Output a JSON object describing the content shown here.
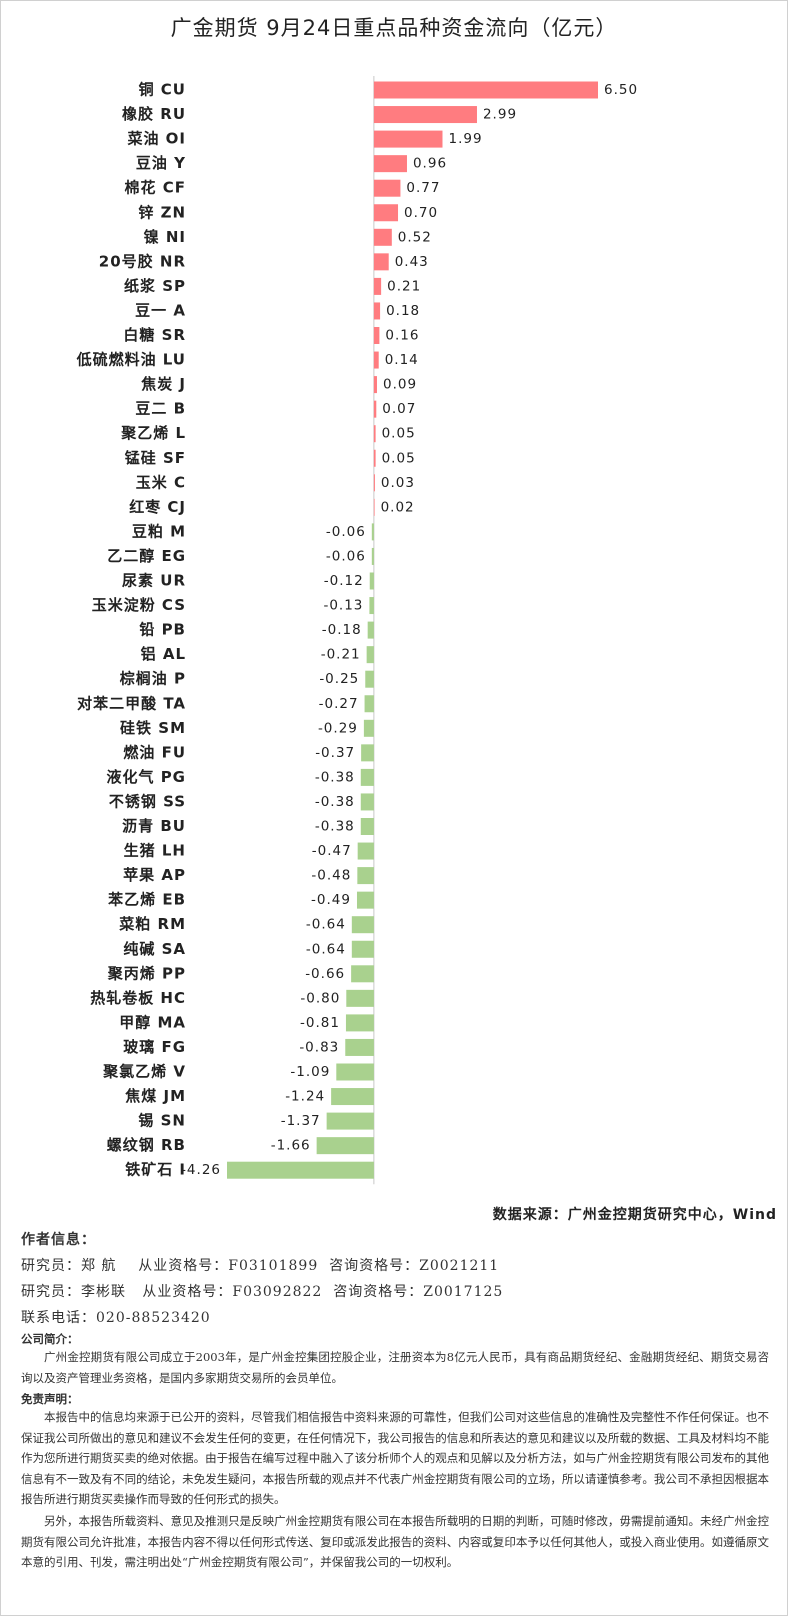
{
  "chart_data": {
    "type": "barh",
    "title": "广金期货 9月24日重点品种资金流向（亿元）",
    "categories": [
      "铜 CU",
      "橡胶 RU",
      "菜油 OI",
      "豆油 Y",
      "棉花 CF",
      "锌 ZN",
      "镍 NI",
      "20号胶 NR",
      "纸浆 SP",
      "豆一 A",
      "白糖 SR",
      "低硫燃料油 LU",
      "焦炭 J",
      "豆二 B",
      "聚乙烯 L",
      "锰硅 SF",
      "玉米 C",
      "红枣 CJ",
      "豆粕 M",
      "乙二醇 EG",
      "尿素 UR",
      "玉米淀粉 CS",
      "铅 PB",
      "铝 AL",
      "棕榈油 P",
      "对苯二甲酸 TA",
      "硅铁 SM",
      "燃油 FU",
      "液化气 PG",
      "不锈钢 SS",
      "沥青 BU",
      "生猪 LH",
      "苹果 AP",
      "苯乙烯 EB",
      "菜粕 RM",
      "纯碱 SA",
      "聚丙烯 PP",
      "热轧卷板 HC",
      "甲醇 MA",
      "玻璃 FG",
      "聚氯乙烯 V",
      "焦煤 JM",
      "锡 SN",
      "螺纹钢 RB",
      "铁矿石 I"
    ],
    "values": [
      6.5,
      2.99,
      1.99,
      0.96,
      0.77,
      0.7,
      0.52,
      0.43,
      0.21,
      0.18,
      0.16,
      0.14,
      0.09,
      0.07,
      0.05,
      0.05,
      0.03,
      0.02,
      -0.06,
      -0.06,
      -0.12,
      -0.13,
      -0.18,
      -0.21,
      -0.25,
      -0.27,
      -0.29,
      -0.37,
      -0.38,
      -0.38,
      -0.38,
      -0.47,
      -0.48,
      -0.49,
      -0.64,
      -0.64,
      -0.66,
      -0.8,
      -0.81,
      -0.83,
      -1.09,
      -1.24,
      -1.37,
      -1.66,
      -4.26
    ],
    "value_labels": [
      "6.50",
      "2.99",
      "1.99",
      "0.96",
      "0.77",
      "0.70",
      "0.52",
      "0.43",
      "0.21",
      "0.18",
      "0.16",
      "0.14",
      "0.09",
      "0.07",
      "0.05",
      "0.05",
      "0.03",
      "0.02",
      "-0.06",
      "-0.06",
      "-0.12",
      "-0.13",
      "-0.18",
      "-0.21",
      "-0.25",
      "-0.27",
      "-0.29",
      "-0.37",
      "-0.38",
      "-0.38",
      "-0.38",
      "-0.47",
      "-0.48",
      "-0.49",
      "-0.64",
      "-0.64",
      "-0.66",
      "-0.80",
      "-0.81",
      "-0.83",
      "-1.09",
      "-1.24",
      "-1.37",
      "-1.66",
      "-4.26"
    ],
    "positive_color": "#ff7c80",
    "negative_color": "#a9d18e",
    "source": "数据来源：广州金控期货研究中心，Wind"
  },
  "document": {
    "author_heading": "作者信息：",
    "researchers": [
      "研究员：郑 航    从业资格号：F03101899  咨询资格号：Z0021211",
      "研究员：李彬联   从业资格号：F03092822  咨询资格号：Z0017125"
    ],
    "phone": "联系电话：020-88523420",
    "company_heading": "公司简介：",
    "company_text": "广州金控期货有限公司成立于2003年，是广州金控集团控股企业，注册资本为8亿元人民币，具有商品期货经纪、金融期货经纪、期货交易咨询以及资产管理业务资格，是国内多家期货交易所的会员单位。",
    "disclaimer_heading": "免责声明：",
    "disclaimer_paragraphs": [
      "本报告中的信息均来源于已公开的资料，尽管我们相信报告中资料来源的可靠性，但我们公司对这些信息的准确性及完整性不作任何保证。也不保证我公司所做出的意见和建议不会发生任何的变更，在任何情况下，我公司报告的信息和所表达的意见和建议以及所载的数据、工具及材料均不能作为您所进行期货买卖的绝对依据。由于报告在编写过程中融入了该分析师个人的观点和见解以及分析方法，如与广州金控期货有限公司发布的其他信息有不一致及有不同的结论，未免发生疑问，本报告所载的观点并不代表广州金控期货有限公司的立场，所以请谨慎参考。我公司不承担因根据本报告所进行期货买卖操作而导致的任何形式的损失。",
      "另外，本报告所载资料、意见及推测只是反映广州金控期货有限公司在本报告所载明的日期的判断，可随时修改，毋需提前通知。未经广州金控期货有限公司允许批准，本报告内容不得以任何形式传送、复印或派发此报告的资料、内容或复印本予以任何其他人，或投入商业使用。如遵循原文本意的引用、刊发，需注明出处“广州金控期货有限公司”，并保留我公司的一切权利。"
    ]
  }
}
